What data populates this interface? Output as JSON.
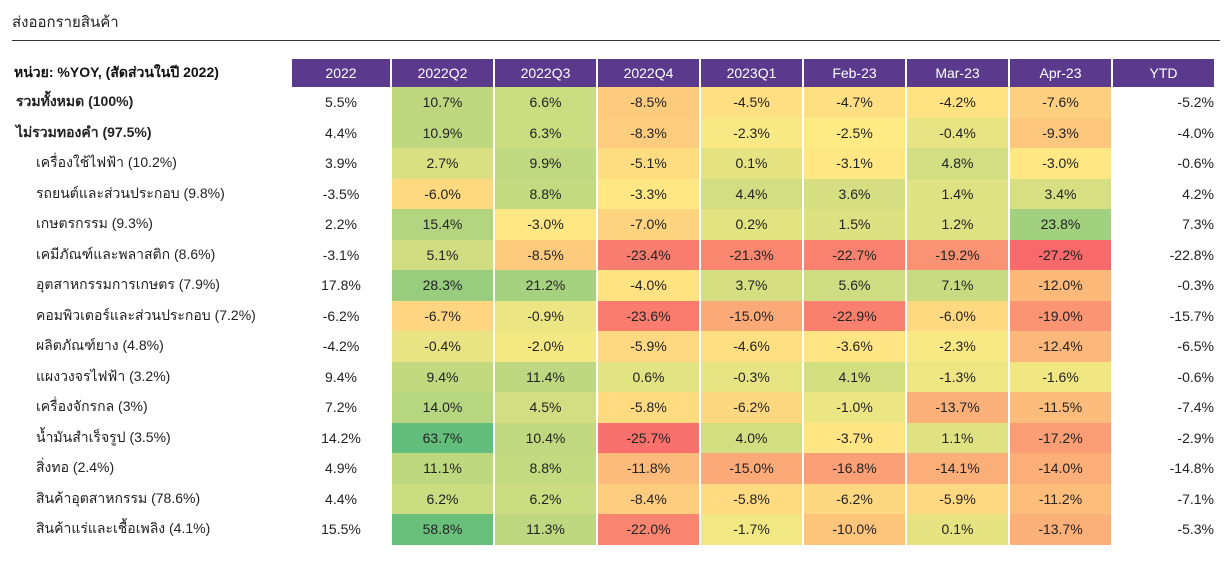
{
  "page": {
    "title": "ส่งออกรายสินค้า"
  },
  "colors": {
    "header_bg": "#5b3a8e",
    "scale_low": "#f8696b",
    "scale_mid": "#ffeb84",
    "scale_high": "#63be7b"
  },
  "chart_data": {
    "type": "table",
    "corner_label": "หน่วย: %YOY, (สัดส่วนในปี 2022)",
    "columns": [
      "2022",
      "2022Q2",
      "2022Q3",
      "2022Q4",
      "2023Q1",
      "Feb-23",
      "Mar-23",
      "Apr-23",
      "YTD"
    ],
    "heatmap_columns": [
      1,
      2,
      3,
      4,
      5,
      6,
      7
    ],
    "rows": [
      {
        "label": "รวมทั้งหมด (100%)",
        "bold": true,
        "values": [
          "5.5%",
          "10.7%",
          "6.6%",
          "-8.5%",
          "-4.5%",
          "-4.7%",
          "-4.2%",
          "-7.6%",
          "-5.2%"
        ]
      },
      {
        "label": "ไม่รวมทองคำ (97.5%)",
        "bold": true,
        "values": [
          "4.4%",
          "10.9%",
          "6.3%",
          "-8.3%",
          "-2.3%",
          "-2.5%",
          "-0.4%",
          "-9.3%",
          "-4.0%"
        ]
      },
      {
        "label": "เครื่องใช้ไฟฟ้า (10.2%)",
        "bold": false,
        "values": [
          "3.9%",
          "2.7%",
          "9.9%",
          "-5.1%",
          "0.1%",
          "-3.1%",
          "4.8%",
          "-3.0%",
          "-0.6%"
        ]
      },
      {
        "label": "รถยนต์และส่วนประกอบ (9.8%)",
        "bold": false,
        "values": [
          "-3.5%",
          "-6.0%",
          "8.8%",
          "-3.3%",
          "4.4%",
          "3.6%",
          "1.4%",
          "3.4%",
          "4.2%"
        ]
      },
      {
        "label": "เกษตรกรรม (9.3%)",
        "bold": false,
        "values": [
          "2.2%",
          "15.4%",
          "-3.0%",
          "-7.0%",
          "0.2%",
          "1.5%",
          "1.2%",
          "23.8%",
          "7.3%"
        ]
      },
      {
        "label": "เคมีภัณฑ์และพลาสติก (8.6%)",
        "bold": false,
        "values": [
          "-3.1%",
          "5.1%",
          "-8.5%",
          "-23.4%",
          "-21.3%",
          "-22.7%",
          "-19.2%",
          "-27.2%",
          "-22.8%"
        ]
      },
      {
        "label": "อุตสาหกรรมการเกษตร (7.9%)",
        "bold": false,
        "values": [
          "17.8%",
          "28.3%",
          "21.2%",
          "-4.0%",
          "3.7%",
          "5.6%",
          "7.1%",
          "-12.0%",
          "-0.3%"
        ]
      },
      {
        "label": "คอมพิวเตอร์และส่วนประกอบ (7.2%)",
        "bold": false,
        "values": [
          "-6.2%",
          "-6.7%",
          "-0.9%",
          "-23.6%",
          "-15.0%",
          "-22.9%",
          "-6.0%",
          "-19.0%",
          "-15.7%"
        ]
      },
      {
        "label": "ผลิตภัณฑ์ยาง (4.8%)",
        "bold": false,
        "values": [
          "-4.2%",
          "-0.4%",
          "-2.0%",
          "-5.9%",
          "-4.6%",
          "-3.6%",
          "-2.3%",
          "-12.4%",
          "-6.5%"
        ]
      },
      {
        "label": "แผงวงจรไฟฟ้า (3.2%)",
        "bold": false,
        "values": [
          "9.4%",
          "9.4%",
          "11.4%",
          "0.6%",
          "-0.3%",
          "4.1%",
          "-1.3%",
          "-1.6%",
          "-0.6%"
        ]
      },
      {
        "label": "เครื่องจักรกล (3%)",
        "bold": false,
        "values": [
          "7.2%",
          "14.0%",
          "4.5%",
          "-5.8%",
          "-6.2%",
          "-1.0%",
          "-13.7%",
          "-11.5%",
          "-7.4%"
        ]
      },
      {
        "label": "น้ำมันสำเร็จรูป (3.5%)",
        "bold": false,
        "values": [
          "14.2%",
          "63.7%",
          "10.4%",
          "-25.7%",
          "4.0%",
          "-3.7%",
          "1.1%",
          "-17.2%",
          "-2.9%"
        ]
      },
      {
        "label": "สิ่งทอ (2.4%)",
        "bold": false,
        "values": [
          "4.9%",
          "11.1%",
          "8.8%",
          "-11.8%",
          "-15.0%",
          "-16.8%",
          "-14.1%",
          "-14.0%",
          "-14.8%"
        ]
      },
      {
        "label": "สินค้าอุตสาหกรรม (78.6%)",
        "bold": false,
        "values": [
          "4.4%",
          "6.2%",
          "6.2%",
          "-8.4%",
          "-5.8%",
          "-6.2%",
          "-5.9%",
          "-11.2%",
          "-7.1%"
        ]
      },
      {
        "label": "สินค้าแร่และเชื้อเพลิง (4.1%)",
        "bold": false,
        "values": [
          "15.5%",
          "58.8%",
          "11.3%",
          "-22.0%",
          "-1.7%",
          "-10.0%",
          "0.1%",
          "-13.7%",
          "-5.3%"
        ]
      }
    ]
  }
}
